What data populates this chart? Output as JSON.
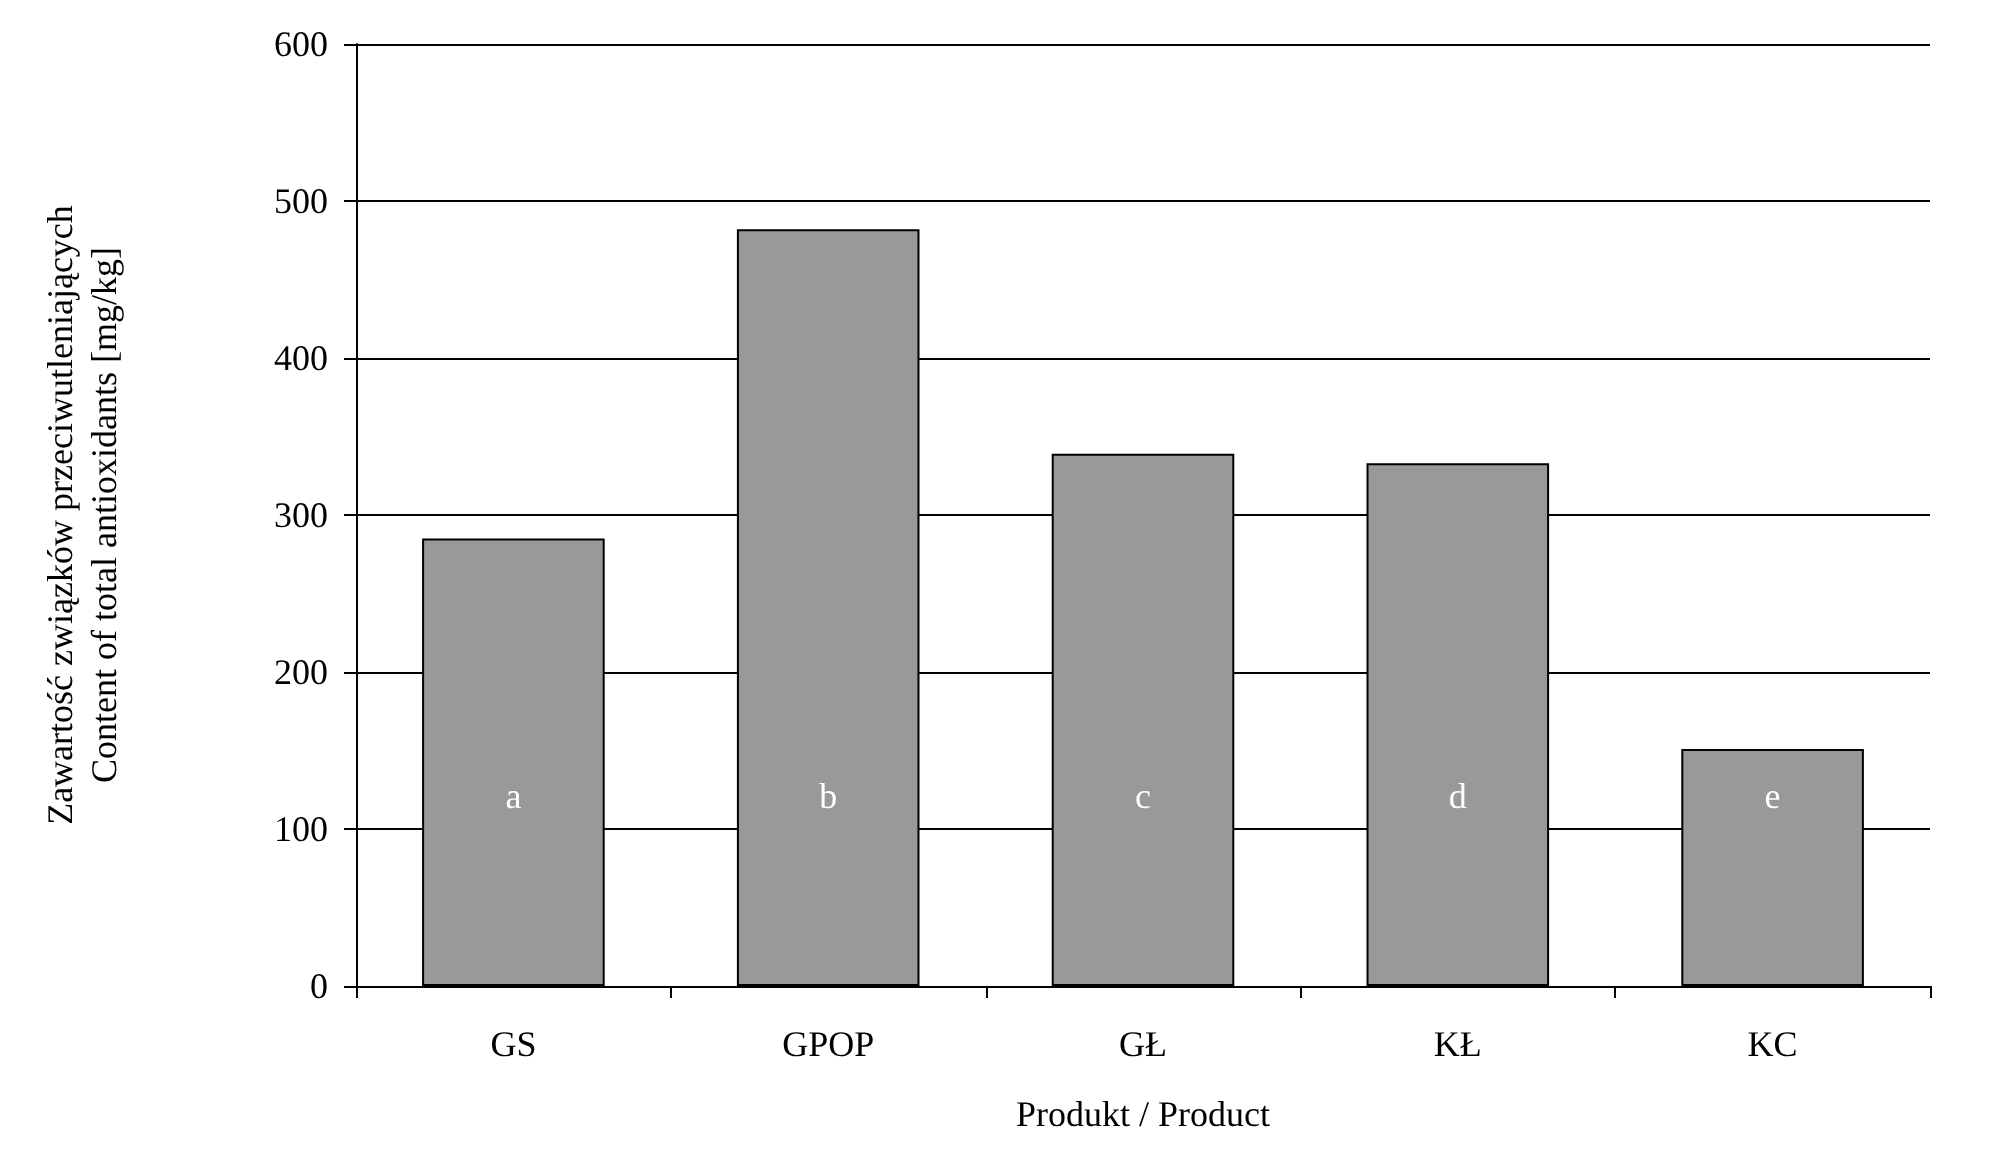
{
  "chart_data": {
    "type": "bar",
    "xlabel": "Produkt / Product",
    "ylabel": "Zawartość związków przeciwutleniających\nContent of total antioxidants [mg/kg]",
    "categories": [
      "GS",
      "GPOP",
      "GŁ",
      "KŁ",
      "KC"
    ],
    "values": [
      285,
      482,
      339,
      333,
      151
    ],
    "color": "#999999",
    "ylim": [
      0,
      600
    ],
    "yticks": [
      0,
      100,
      200,
      300,
      400,
      500,
      600
    ],
    "grid": "y",
    "annotations": [
      "a",
      "b",
      "c",
      "d",
      "e"
    ]
  }
}
